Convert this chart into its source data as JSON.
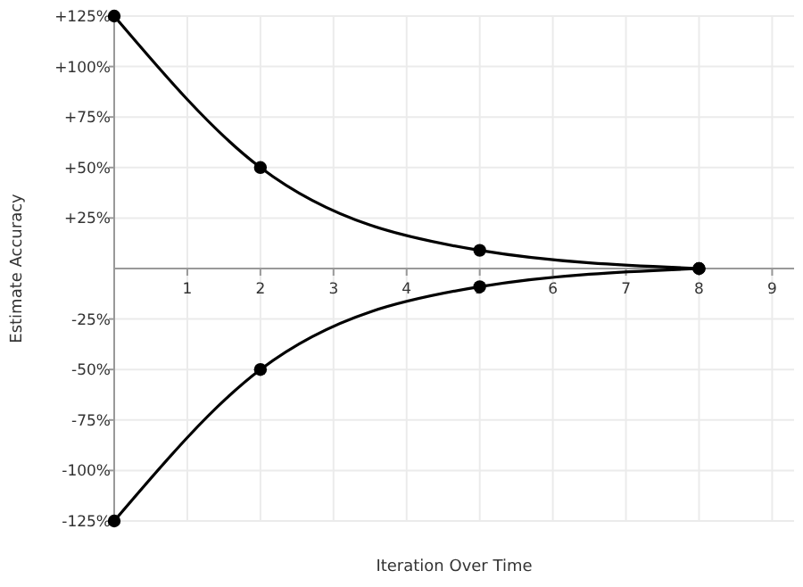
{
  "chart_data": {
    "type": "line",
    "xlabel": "Iteration Over Time",
    "ylabel": "Estimate Accuracy",
    "x": [
      0,
      2,
      5,
      8
    ],
    "series": [
      {
        "color": "#000000",
        "values": [
          125,
          50,
          9,
          0
        ]
      },
      {
        "color": "#000000",
        "values": [
          -125,
          -50,
          -9,
          0
        ]
      }
    ],
    "xlim": [
      0,
      9.3
    ],
    "xticks": [
      1,
      2,
      3,
      4,
      5,
      6,
      7,
      8,
      9
    ],
    "ylim": [
      -125,
      125
    ],
    "yticks": [
      {
        "value": -125,
        "label": "-125%"
      },
      {
        "value": -100,
        "label": "-100%"
      },
      {
        "value": -75,
        "label": "-75%"
      },
      {
        "value": -50,
        "label": "-50%"
      },
      {
        "value": -25,
        "label": "-25%"
      },
      {
        "value": 25,
        "label": "+25%"
      },
      {
        "value": 50,
        "label": "+50%"
      },
      {
        "value": 75,
        "label": "+75%"
      },
      {
        "value": 100,
        "label": "+100%"
      },
      {
        "value": 125,
        "label": "+125%"
      }
    ],
    "grid": true,
    "marker": "circle",
    "line_style": "solid"
  }
}
